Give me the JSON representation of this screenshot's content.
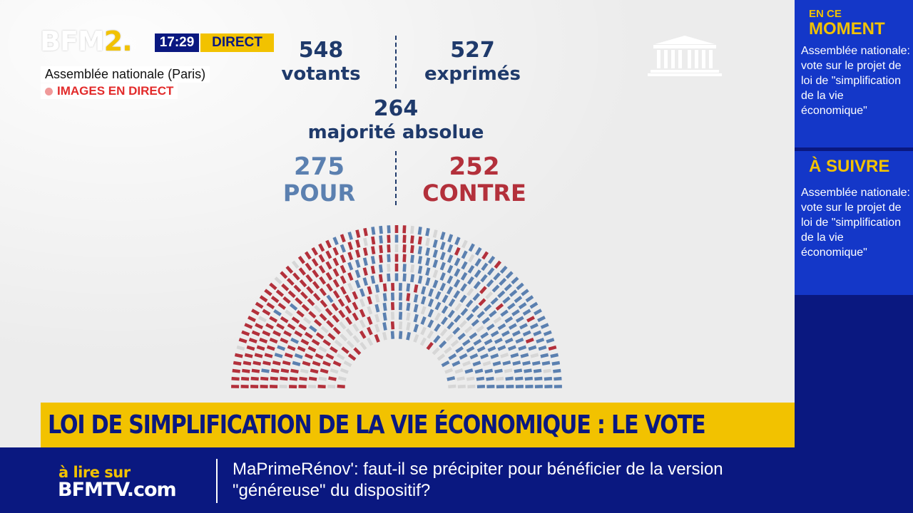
{
  "broadcast": {
    "logo_text": "BFM",
    "logo_num": "2.",
    "time": "17:29",
    "direct_label": "DIRECT",
    "location": "Assemblée nationale (Paris)",
    "live_label": "IMAGES EN DIRECT"
  },
  "vote": {
    "votants_num": "548",
    "votants_label": "votants",
    "exprimes_num": "527",
    "exprimes_label": "exprimés",
    "majorite_num": "264",
    "majorite_label": "majorité absolue",
    "pour_num": "275",
    "pour_label": "POUR",
    "contre_num": "252",
    "contre_label": "CONTRE"
  },
  "hemicycle": {
    "total_votants": 548,
    "pour": 275,
    "contre": 252,
    "colors": {
      "pour": "#5b80b0",
      "contre": "#b3303b",
      "other": "#d6d6d6"
    }
  },
  "headline": "LOI DE SIMPLIFICATION DE LA VIE ÉCONOMIQUE : LE VOTE",
  "side": {
    "now_heading_small": "EN CE",
    "now_heading_big": "MOMENT",
    "now_text": "Assemblée nationale: vote sur le projet de loi de \"simplification de la vie économique\"",
    "next_heading": "À SUIVRE",
    "next_text": "Assemblée nationale: vote sur le projet de loi de \"simplification de la vie économique\""
  },
  "ticker": {
    "promo_line1": "à lire sur",
    "promo_line2": "BFMTV.com",
    "text": "MaPrimeRénov': faut-il se précipiter pour bénéficier de la version \"généreuse\" du dispositif?"
  },
  "colors": {
    "navy": "#0a1880",
    "yellow": "#f2c200",
    "side_blue": "#1437c8",
    "pour_blue": "#5b80b0",
    "contre_red": "#b3303b",
    "text_navy": "#1f3a6b"
  }
}
